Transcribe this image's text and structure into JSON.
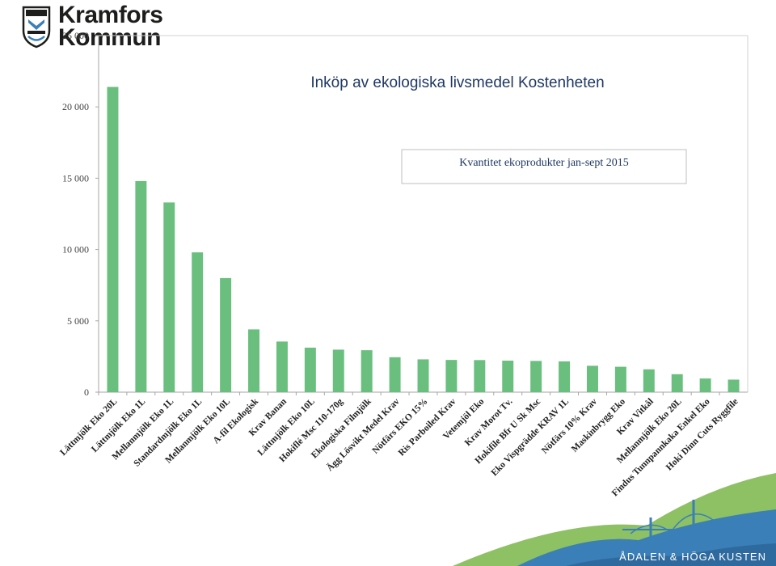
{
  "logo": {
    "line1": "Kramfors",
    "line2": "Kommun"
  },
  "footer": {
    "text": "ÅDALEN & HÖGA KUSTEN"
  },
  "colors": {
    "bar": "#6abf7f",
    "title": "#1f3864",
    "grid": "#d0d0d0",
    "footer_green": "#7ab648",
    "footer_blue": "#3a7fb8"
  },
  "chart_data": {
    "type": "bar",
    "title": "Inköp av ekologiska livsmedel Kostenheten",
    "subtitle": "Kvantitet ekoprodukter jan-sept 2015",
    "xlabel": "",
    "ylabel": "",
    "ylim": [
      0,
      25000
    ],
    "yticks": [
      0,
      5000,
      10000,
      15000,
      20000,
      25000
    ],
    "ytick_labels": [
      "0",
      "5 000",
      "10 000",
      "15 000",
      "20 000",
      "25 000"
    ],
    "grid": false,
    "categories": [
      "Lättmjölk Eko 20L",
      "Lättmjölk Eko 1L",
      "Mellanmjölk Eko 1L",
      "Standardmjölk Eko 1L",
      "Mellanmjölk Eko 10L",
      "A-fil Ekologisk",
      "Krav Banan",
      "Lättmjölk Eko 10L",
      "Hokiflé Msc 110-170g",
      "Ekologiska Filmjölk",
      "Ägg Lösvikt Medel Krav",
      "Nötfärs EKO 15%",
      "Ris Parboiled Krav",
      "Vetemjöl Eko",
      "Krav Morot Tv.",
      "Hokifile Bfr U Sk Msc",
      "Eko Vispgrädde KRAV 1L",
      "Nötfärs 10% Krav",
      "Maskinbrygg Eko",
      "Krav Vitkål",
      "Mellanmjölk Eko 20L",
      "Findus Tunnpannkaka Enkel Eko",
      "Hoki Dinn Cuts Ryggfile"
    ],
    "values": [
      21400,
      14800,
      13300,
      9800,
      8000,
      4400,
      3550,
      3120,
      2980,
      2940,
      2450,
      2300,
      2260,
      2250,
      2210,
      2190,
      2160,
      1850,
      1780,
      1600,
      1260,
      960,
      880
    ]
  }
}
